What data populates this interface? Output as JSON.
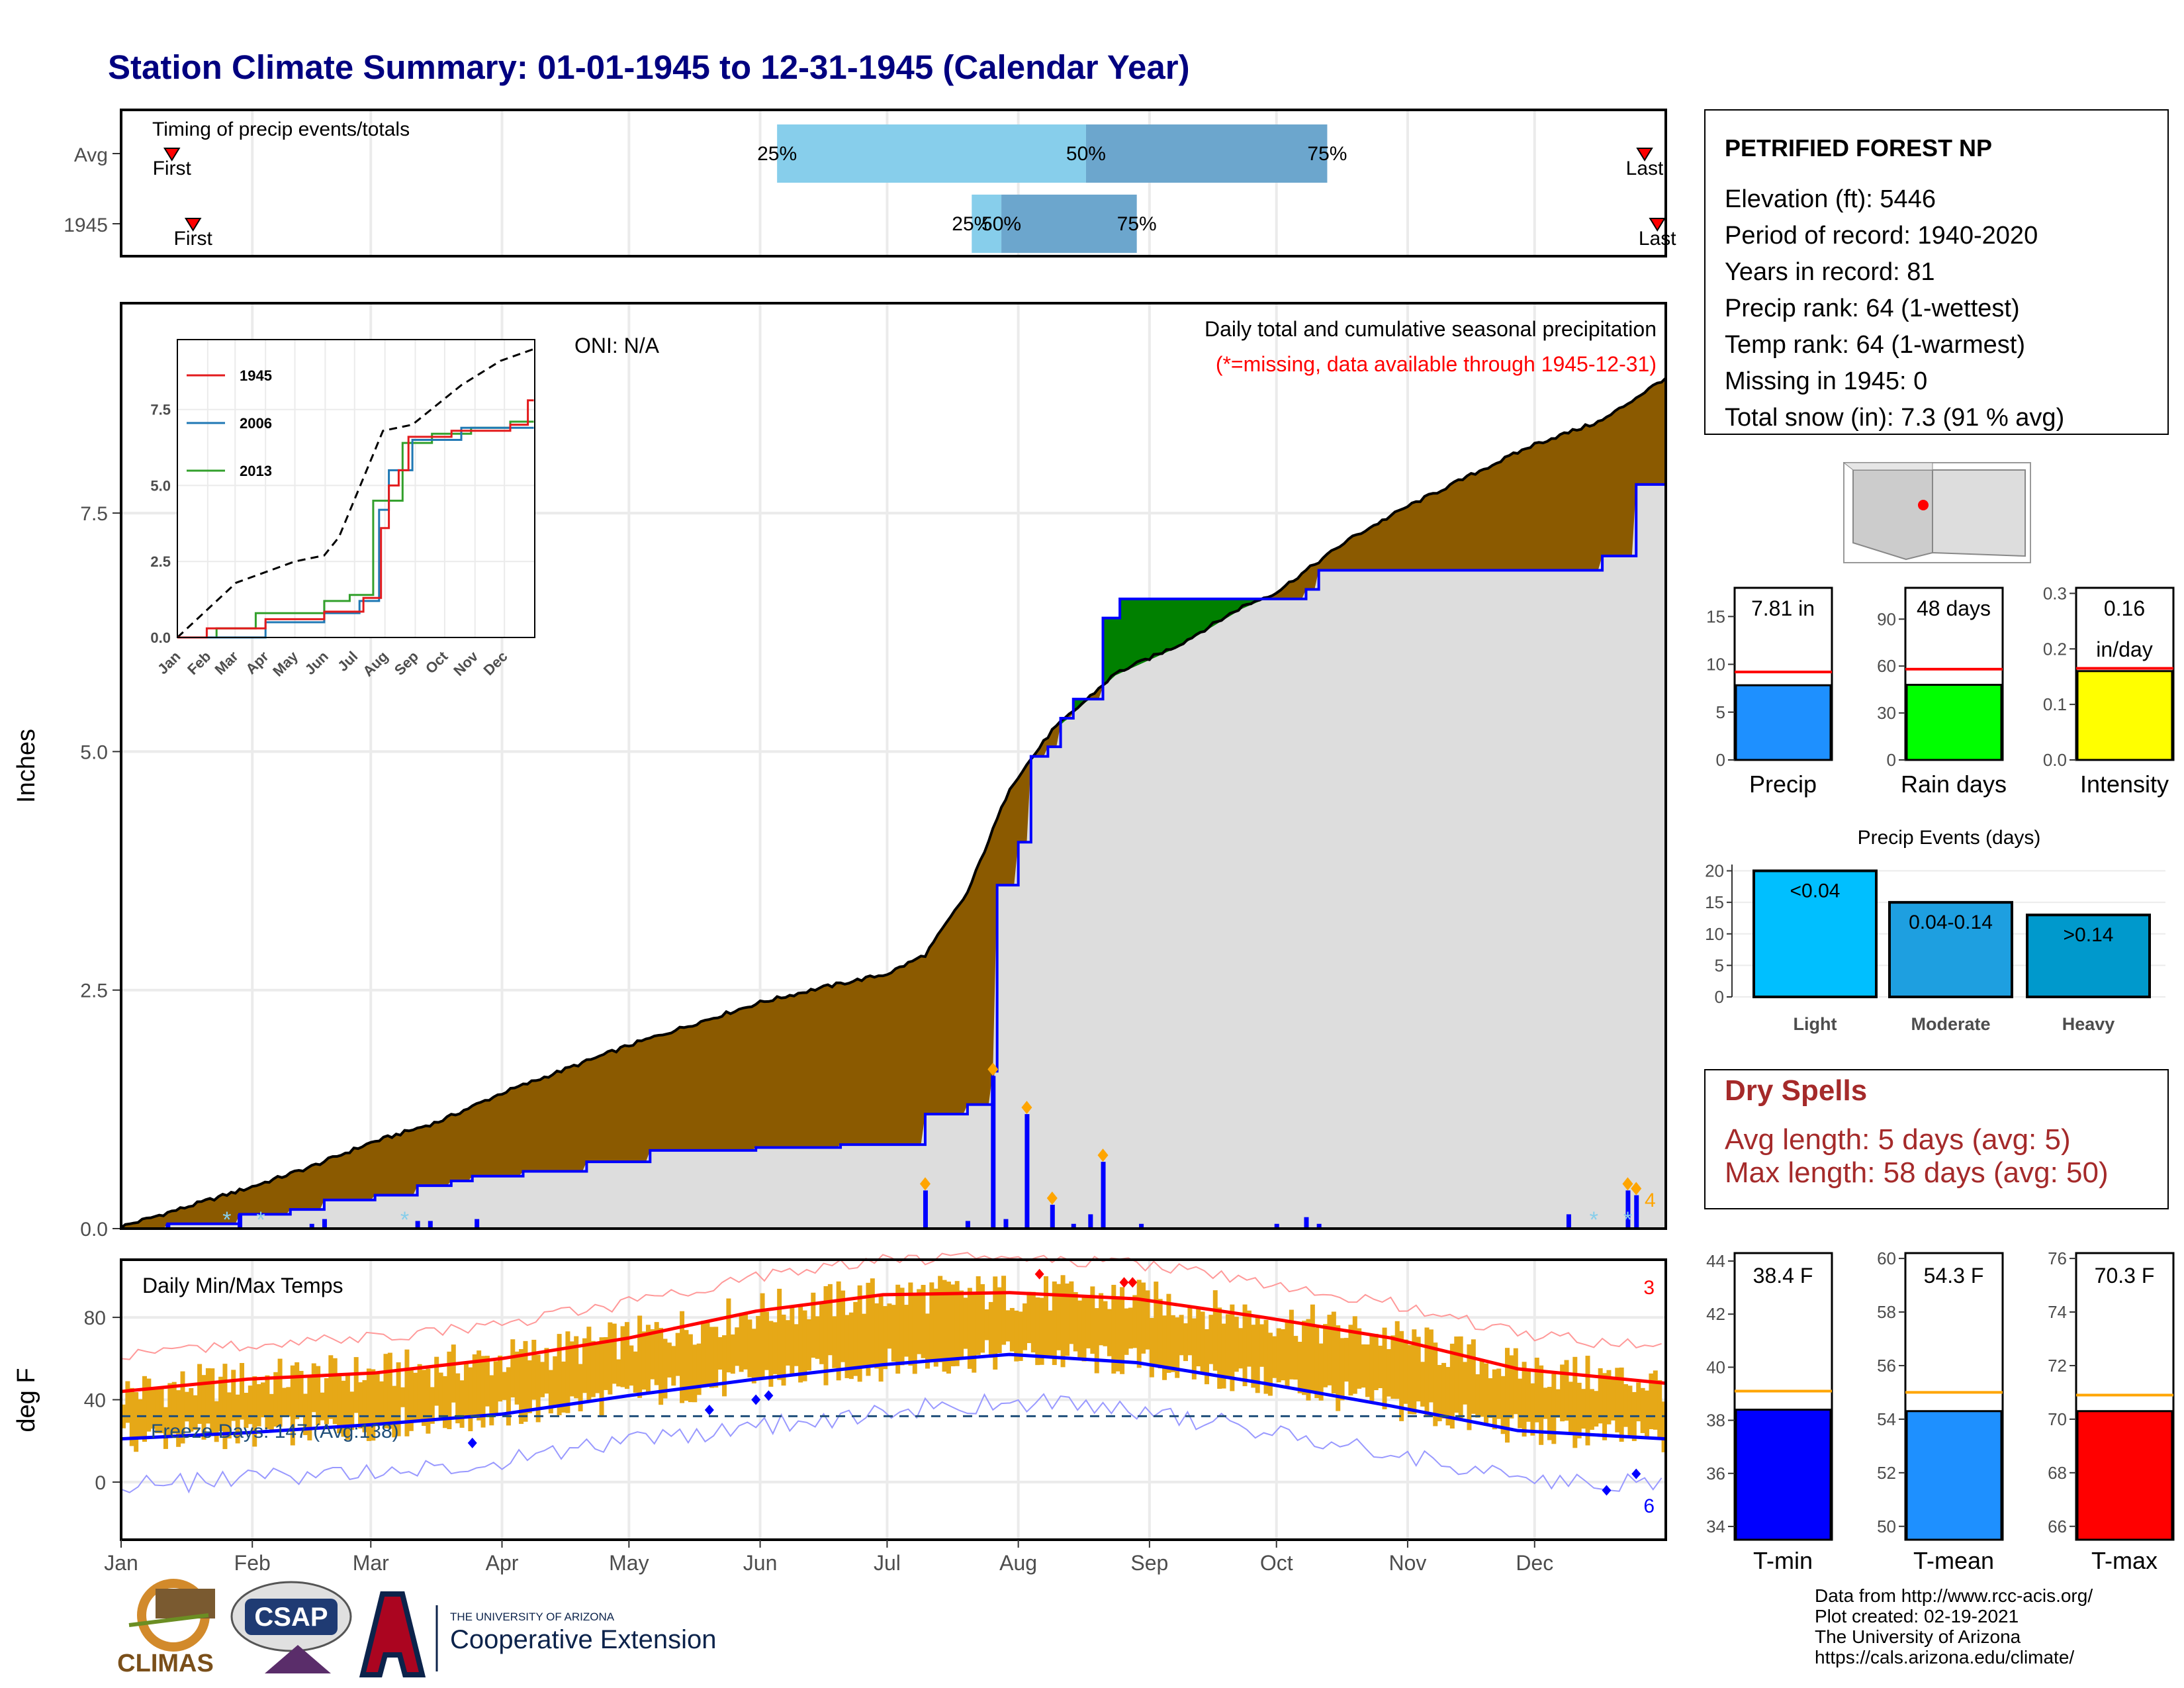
{
  "title": "Station Climate Summary: 01-01-1945 to 12-31-1945 (Calendar Year)",
  "colors": {
    "title": "#000080",
    "precip_cum_avg": "#8b5a00",
    "precip_cum_above": "#008000",
    "precip_obs_fill": "#dddddd",
    "precip_line": "#0000ff",
    "temp_bars": "#e6a817",
    "tmax_avg": "#ff0000",
    "tmin_avg": "#0000ff",
    "avg_line": "#ffa500"
  },
  "timing_panel": {
    "label": "Timing of precip events/totals",
    "rows": [
      {
        "name": "Avg",
        "first_label": "First",
        "last_label": "Last",
        "p25_label": "25%",
        "p50_label": "50%",
        "p75_label": "75%"
      },
      {
        "name": "1945",
        "first_label": "First",
        "last_label": "Last",
        "p25_label": "25%",
        "p50_label": "50%",
        "p75_label": "75%"
      }
    ],
    "rows_data": [
      {
        "first": 12,
        "p25": 155,
        "p50": 228,
        "p75": 285,
        "last": 360
      },
      {
        "first": 17,
        "p25": 201,
        "p50": 208,
        "p75": 240,
        "last": 363
      }
    ]
  },
  "precip_panel": {
    "ylabel": "Inches",
    "header": "Daily total and cumulative seasonal precipitation",
    "missing_note": "(*=missing, data available through 1945-12-31)",
    "oni": "ONI: N/A",
    "corner_count": "4"
  },
  "inset": {
    "legend": [
      "1945",
      "2006",
      "2013"
    ],
    "legend_colors": [
      "#e31a1c",
      "#1f78b4",
      "#33a02c"
    ],
    "yticks": [
      "0.0",
      "2.5",
      "5.0",
      "7.5"
    ],
    "xticks": [
      "Jan",
      "Feb",
      "Mar",
      "Apr",
      "May",
      "Jun",
      "Jul",
      "Aug",
      "Sep",
      "Oct",
      "Nov",
      "Dec"
    ]
  },
  "temp_panel": {
    "ylabel": "deg F",
    "label": "Daily Min/Max Temps",
    "freeze_label": "Freeze Days: 147 (Avg:138)",
    "count_high": "3",
    "count_low": "6",
    "yticks": [
      "0",
      "40",
      "80"
    ]
  },
  "months": [
    "Jan",
    "Feb",
    "Mar",
    "Apr",
    "May",
    "Jun",
    "Jul",
    "Aug",
    "Sep",
    "Oct",
    "Nov",
    "Dec"
  ],
  "station": {
    "name": "PETRIFIED FOREST NP",
    "lines": [
      "Elevation (ft): 5446",
      "Period of record: 1940-2020",
      "Years in record: 81",
      "Precip rank: 64 (1-wettest)",
      "Temp rank: 64 (1-warmest)",
      "Missing in 1945: 0",
      "Total snow (in): 7.3 (91 % avg)"
    ]
  },
  "mini_bars": [
    {
      "label": "Precip",
      "value_text": "7.81 in",
      "value": 7.81,
      "avg": 9.2,
      "ymax": 18,
      "ticks": [
        "0",
        "5",
        "10",
        "15"
      ],
      "tickvals": [
        0,
        5,
        10,
        15
      ],
      "color": "#1e90ff",
      "avg_color": "#ff0000"
    },
    {
      "label": "Rain days",
      "value_text": "48 days",
      "value": 48,
      "avg": 58,
      "ymax": 110,
      "ticks": [
        "0",
        "30",
        "60",
        "90"
      ],
      "tickvals": [
        0,
        30,
        60,
        90
      ],
      "color": "#00ff00",
      "avg_color": "#ff0000"
    },
    {
      "label": "Intensity",
      "value_text": "0.16",
      "value_text2": "in/day",
      "value": 0.16,
      "avg": 0.165,
      "ymax": 0.31,
      "ticks": [
        "0.0",
        "0.1",
        "0.2",
        "0.3"
      ],
      "tickvals": [
        0,
        0.1,
        0.2,
        0.3
      ],
      "color": "#ffff00",
      "avg_color": "#ff0000"
    }
  ],
  "precip_events": {
    "title": "Precip Events (days)",
    "categories": [
      "Light",
      "Moderate",
      "Heavy"
    ],
    "labels": [
      "<0.04",
      "0.04-0.14",
      ">0.14"
    ],
    "values": [
      20,
      15,
      13
    ],
    "colors": [
      "#00bfff",
      "#1e9fe0",
      "#0099cc"
    ],
    "ticks": [
      "0",
      "5",
      "10",
      "15",
      "20"
    ]
  },
  "dry_spells": {
    "title": "Dry Spells",
    "avg": "Avg length: 5 days (avg: 5)",
    "max": "Max length: 58 days (avg: 50)"
  },
  "temp_bars": [
    {
      "label": "T-min",
      "value_text": "38.4 F",
      "value": 38.4,
      "avg": 39.1,
      "ymin": 33.5,
      "ymax": 44.3,
      "ticks": [
        "34",
        "36",
        "38",
        "40",
        "42",
        "44"
      ],
      "tickvals": [
        34,
        36,
        38,
        40,
        42,
        44
      ],
      "color": "#0000ff"
    },
    {
      "label": "T-mean",
      "value_text": "54.3 F",
      "value": 54.3,
      "avg": 55.0,
      "ymin": 49.5,
      "ymax": 60.2,
      "ticks": [
        "50",
        "52",
        "54",
        "56",
        "58",
        "60"
      ],
      "tickvals": [
        50,
        52,
        54,
        56,
        58,
        60
      ],
      "color": "#1e90ff"
    },
    {
      "label": "T-max",
      "value_text": "70.3 F",
      "value": 70.3,
      "avg": 70.9,
      "ymin": 65.5,
      "ymax": 76.2,
      "ticks": [
        "66",
        "68",
        "70",
        "72",
        "74",
        "76"
      ],
      "tickvals": [
        66,
        68,
        70,
        72,
        74,
        76
      ],
      "color": "#ff0000"
    }
  ],
  "footer": {
    "lines": [
      "Data from http://www.rcc-acis.org/",
      "Plot created: 02-19-2021",
      "The University of Arizona",
      "https://cals.arizona.edu/climate/"
    ],
    "climas": "CLIMAS",
    "csap": "CSAP",
    "ua_small": "THE UNIVERSITY OF ARIZONA",
    "ua_big": "Cooperative Extension"
  },
  "chart_data": {
    "type": "area",
    "title": "Daily total and cumulative seasonal precipitation",
    "ylabel": "Inches",
    "ylim": [
      0,
      9.7
    ],
    "x_unit": "day of year",
    "avg_cumulative": [
      [
        0,
        0
      ],
      [
        15,
        0.2
      ],
      [
        31,
        0.42
      ],
      [
        45,
        0.63
      ],
      [
        59,
        0.88
      ],
      [
        75,
        1.1
      ],
      [
        90,
        1.4
      ],
      [
        105,
        1.65
      ],
      [
        120,
        1.9
      ],
      [
        135,
        2.12
      ],
      [
        151,
        2.35
      ],
      [
        165,
        2.5
      ],
      [
        181,
        2.65
      ],
      [
        190,
        2.85
      ],
      [
        200,
        3.5
      ],
      [
        210,
        4.6
      ],
      [
        220,
        5.2
      ],
      [
        235,
        5.8
      ],
      [
        250,
        6.1
      ],
      [
        265,
        6.5
      ],
      [
        273,
        6.65
      ],
      [
        290,
        7.2
      ],
      [
        304,
        7.55
      ],
      [
        320,
        7.9
      ],
      [
        334,
        8.2
      ],
      [
        350,
        8.45
      ],
      [
        365,
        8.9
      ]
    ],
    "obs_cumulative": [
      [
        0,
        0
      ],
      [
        11,
        0.05
      ],
      [
        25,
        0.05
      ],
      [
        28,
        0.15
      ],
      [
        40,
        0.2
      ],
      [
        48,
        0.3
      ],
      [
        60,
        0.35
      ],
      [
        70,
        0.45
      ],
      [
        78,
        0.5
      ],
      [
        83,
        0.55
      ],
      [
        95,
        0.6
      ],
      [
        110,
        0.7
      ],
      [
        125,
        0.82
      ],
      [
        150,
        0.85
      ],
      [
        170,
        0.88
      ],
      [
        190,
        1.2
      ],
      [
        200,
        1.3
      ],
      [
        206,
        1.65
      ],
      [
        207,
        3.6
      ],
      [
        212,
        4.05
      ],
      [
        215,
        4.95
      ],
      [
        219,
        5.05
      ],
      [
        222,
        5.35
      ],
      [
        225,
        5.55
      ],
      [
        232,
        6.4
      ],
      [
        236,
        6.6
      ],
      [
        273,
        6.6
      ],
      [
        280,
        6.7
      ],
      [
        283,
        6.9
      ],
      [
        340,
        6.9
      ],
      [
        350,
        7.05
      ],
      [
        355,
        7.05
      ],
      [
        358,
        7.8
      ],
      [
        365,
        7.81
      ]
    ],
    "daily_bars": [
      [
        11,
        0.05
      ],
      [
        28,
        0.15
      ],
      [
        45,
        0.05
      ],
      [
        48,
        0.1
      ],
      [
        70,
        0.08
      ],
      [
        73,
        0.08
      ],
      [
        84,
        0.1
      ],
      [
        190,
        0.4
      ],
      [
        200,
        0.08
      ],
      [
        206,
        1.6
      ],
      [
        209,
        0.1
      ],
      [
        214,
        1.2
      ],
      [
        220,
        0.25
      ],
      [
        225,
        0.05
      ],
      [
        229,
        0.15
      ],
      [
        232,
        0.7
      ],
      [
        241,
        0.05
      ],
      [
        273,
        0.05
      ],
      [
        280,
        0.12
      ],
      [
        283,
        0.05
      ],
      [
        342,
        0.15
      ],
      [
        356,
        0.4
      ],
      [
        358,
        0.35
      ]
    ],
    "inset_series": {
      "avg": [
        [
          0,
          0
        ],
        [
          60,
          1.8
        ],
        [
          120,
          2.5
        ],
        [
          150,
          2.7
        ],
        [
          165,
          3.3
        ],
        [
          210,
          6.8
        ],
        [
          240,
          7.0
        ],
        [
          290,
          8.3
        ],
        [
          330,
          9.1
        ],
        [
          365,
          9.5
        ]
      ],
      "1945": [
        [
          0,
          0
        ],
        [
          30,
          0.3
        ],
        [
          90,
          0.6
        ],
        [
          150,
          0.85
        ],
        [
          190,
          1.3
        ],
        [
          207,
          3.6
        ],
        [
          215,
          5.0
        ],
        [
          225,
          5.5
        ],
        [
          236,
          6.6
        ],
        [
          280,
          6.8
        ],
        [
          340,
          7.0
        ],
        [
          358,
          7.8
        ],
        [
          365,
          7.81
        ]
      ],
      "2006": [
        [
          0,
          0
        ],
        [
          90,
          0.5
        ],
        [
          150,
          0.8
        ],
        [
          185,
          1.2
        ],
        [
          205,
          4.2
        ],
        [
          215,
          5.5
        ],
        [
          240,
          6.5
        ],
        [
          290,
          6.9
        ],
        [
          365,
          7.3
        ]
      ],
      "2013": [
        [
          0,
          0
        ],
        [
          40,
          0.3
        ],
        [
          80,
          0.8
        ],
        [
          150,
          1.2
        ],
        [
          175,
          1.4
        ],
        [
          200,
          4.5
        ],
        [
          230,
          6.4
        ],
        [
          260,
          6.7
        ],
        [
          300,
          6.9
        ],
        [
          340,
          7.1
        ],
        [
          365,
          7.3
        ]
      ]
    },
    "temp": {
      "ylabel": "deg F",
      "ylim": [
        -28,
        108
      ],
      "tmax_avg": [
        [
          0,
          44
        ],
        [
          30,
          50
        ],
        [
          60,
          53
        ],
        [
          90,
          60
        ],
        [
          120,
          70
        ],
        [
          150,
          83
        ],
        [
          180,
          91
        ],
        [
          210,
          92
        ],
        [
          240,
          89
        ],
        [
          270,
          80
        ],
        [
          300,
          70
        ],
        [
          330,
          55
        ],
        [
          365,
          48
        ]
      ],
      "tmin_avg": [
        [
          0,
          21
        ],
        [
          30,
          24
        ],
        [
          60,
          28
        ],
        [
          90,
          33
        ],
        [
          120,
          42
        ],
        [
          150,
          50
        ],
        [
          180,
          57
        ],
        [
          210,
          62
        ],
        [
          240,
          58
        ],
        [
          270,
          48
        ],
        [
          300,
          37
        ],
        [
          330,
          25
        ],
        [
          365,
          21
        ]
      ],
      "freeze_threshold": 32
    }
  }
}
